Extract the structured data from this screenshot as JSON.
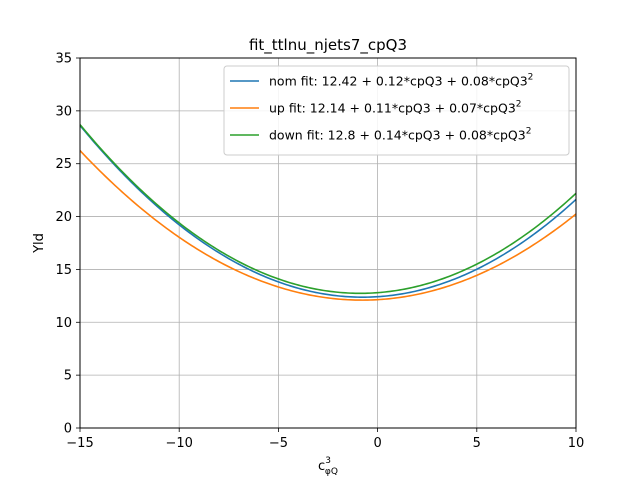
{
  "chart_data": {
    "type": "line",
    "title": "fit_ttlnu_njets7_cpQ3",
    "ylabel": "Yld",
    "xlabel_main": "c",
    "xlabel_sup": "3",
    "xlabel_sub": "φQ",
    "xlim": [
      -15,
      10
    ],
    "ylim": [
      0,
      35
    ],
    "x_ticks": [
      -15,
      -10,
      -5,
      0,
      5,
      10
    ],
    "x_tick_labels": [
      "−15",
      "−10",
      "−5",
      "0",
      "5",
      "10"
    ],
    "y_ticks": [
      0,
      5,
      10,
      15,
      20,
      25,
      30,
      35
    ],
    "y_tick_labels": [
      "0",
      "5",
      "10",
      "15",
      "20",
      "25",
      "30",
      "35"
    ],
    "grid": true,
    "legend_position": "top-right",
    "series": [
      {
        "name": "nom fit: 12.42 + 0.12*cpQ3 + 0.08*cpQ3",
        "name_sup": "2",
        "color": "#1f77b4",
        "coeffs": [
          12.42,
          0.12,
          0.08
        ],
        "x": [
          -15,
          -12.5,
          -10,
          -7.5,
          -5,
          -2.5,
          0,
          2.5,
          5,
          7.5,
          10
        ],
        "y": [
          27.8,
          23.4,
          19.4,
          15.8,
          13.3,
          12.4,
          12.4,
          13.2,
          14.9,
          17.7,
          21.3
        ]
      },
      {
        "name": "up fit: 12.14 + 0.11*cpQ3 + 0.07*cpQ3",
        "name_sup": "2",
        "color": "#ff7f0e",
        "coeffs": [
          12.14,
          0.11,
          0.07
        ],
        "x": [
          -15,
          -12.5,
          -10,
          -7.5,
          -5,
          -2.5,
          0,
          2.5,
          5,
          7.5,
          10
        ],
        "y": [
          26.6,
          22.6,
          18.3,
          15.2,
          13.3,
          12.3,
          12.1,
          12.8,
          14.5,
          17.0,
          20.4
        ]
      },
      {
        "name": "down fit: 12.8 + 0.14*cpQ3 + 0.08*cpQ3",
        "name_sup": "2",
        "color": "#2ca02c",
        "coeffs": [
          12.8,
          0.14,
          0.08
        ],
        "x": [
          -15,
          -12.5,
          -10,
          -7.5,
          -5,
          -2.5,
          0,
          2.5,
          5,
          7.5,
          10
        ],
        "y": [
          29.4,
          24.8,
          20.2,
          16.9,
          14.3,
          13.1,
          12.8,
          13.6,
          15.6,
          18.7,
          22.5
        ]
      }
    ]
  }
}
